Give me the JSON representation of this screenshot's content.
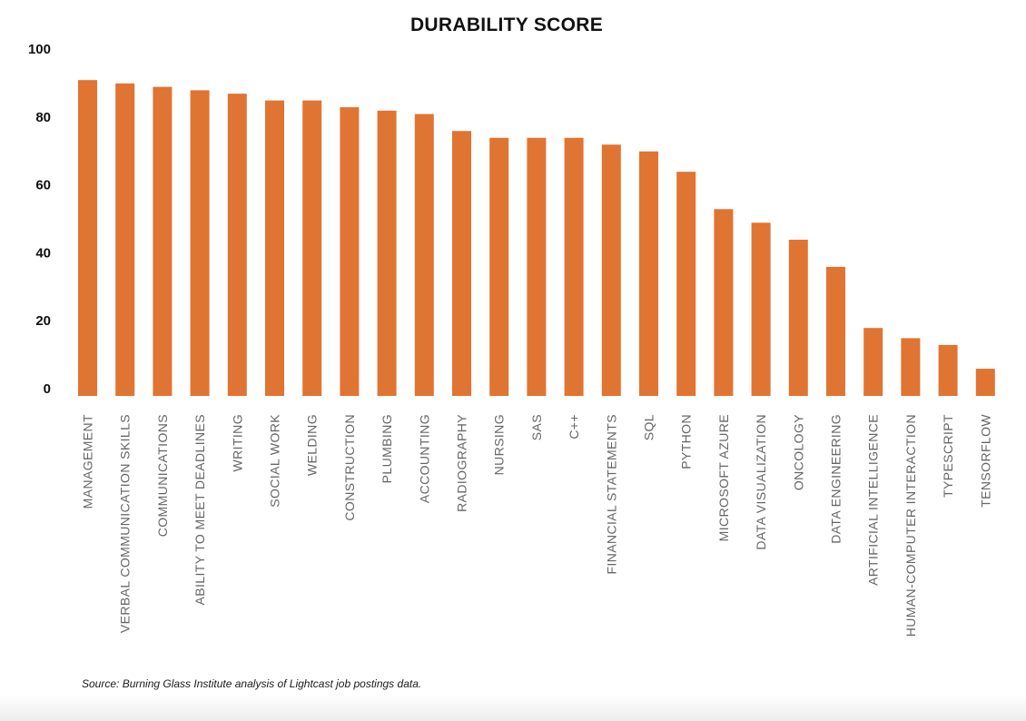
{
  "chart_data": {
    "type": "bar",
    "title": "DURABILITY SCORE",
    "xlabel": "",
    "ylabel": "",
    "ylim": [
      0,
      100
    ],
    "yticks": [
      "0",
      "20",
      "40",
      "60",
      "80",
      "100"
    ],
    "grid": false,
    "legend": "none",
    "bar_color": "#E07433",
    "categories": [
      "MANAGEMENT",
      "VERBAL COMMUNICATION SKILLS",
      "COMMUNICATIONS",
      "ABILITY TO MEET DEADLINES",
      "WRITING",
      "SOCIAL WORK",
      "WELDING",
      "CONSTRUCTION",
      "PLUMBING",
      "ACCOUNTING",
      "RADIOGRAPHY",
      "NURSING",
      "SAS",
      "C++",
      "FINANCIAL STATEMENTS",
      "SQL",
      "PYTHON",
      "MICROSOFT AZURE",
      "DATA VISUALIZATION",
      "ONCOLOGY",
      "DATA ENGINEERING",
      "ARTIFICIAL INTELLIGENCE",
      "HUMAN-COMPUTER INTERACTION",
      "TYPESCRIPT",
      "TENSORFLOW"
    ],
    "values": [
      93,
      92,
      91,
      90,
      89,
      87,
      87,
      85,
      84,
      83,
      78,
      76,
      76,
      76,
      74,
      72,
      66,
      55,
      51,
      46,
      38,
      20,
      17,
      15,
      8
    ],
    "source": "Source: Burning Glass Institute analysis of Lightcast job postings data."
  }
}
